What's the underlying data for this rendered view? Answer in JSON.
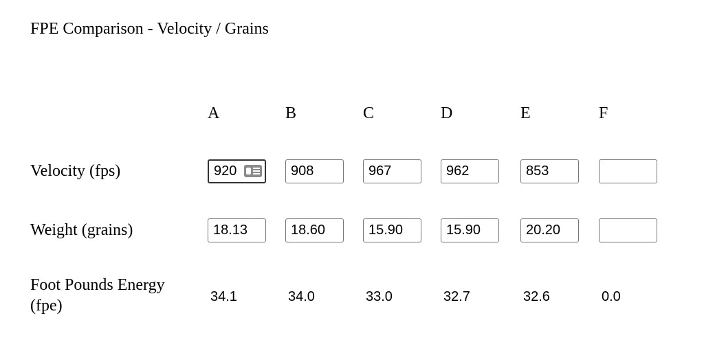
{
  "title": "FPE Comparison - Velocity / Grains",
  "columns": [
    "A",
    "B",
    "C",
    "D",
    "E",
    "F"
  ],
  "rows": [
    {
      "label": "Velocity (fps)",
      "values": [
        "920",
        "908",
        "967",
        "962",
        "853",
        null
      ]
    },
    {
      "label": "Weight (grains)",
      "values": [
        "18.13",
        "18.60",
        "15.90",
        "15.90",
        "20.20",
        null
      ]
    },
    {
      "label": "Foot Pounds Energy (fpe)",
      "values": [
        "34.1",
        "34.0",
        "33.0",
        "32.7",
        "32.6",
        "0.0"
      ]
    }
  ]
}
